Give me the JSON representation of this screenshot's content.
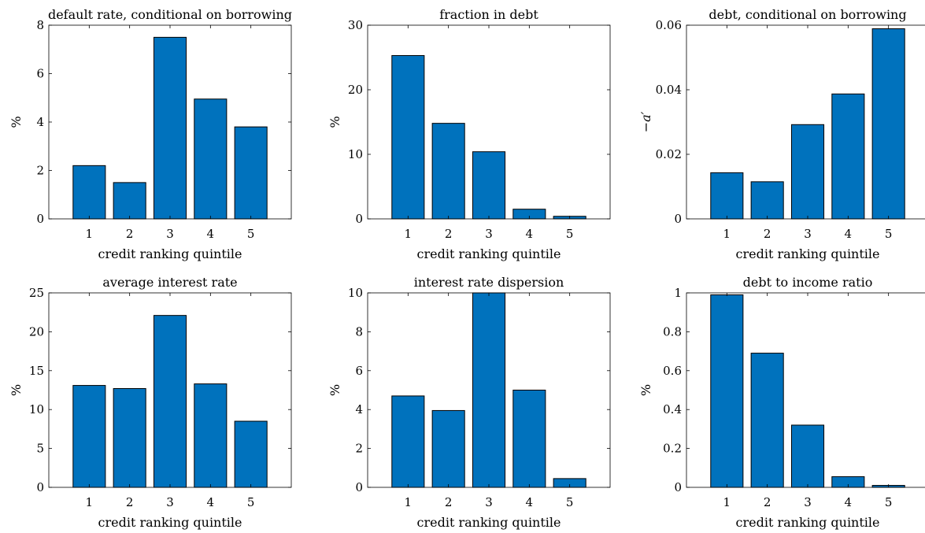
{
  "figure": {
    "bar_color": "#0072BD",
    "bar_edge_color": "#000000",
    "axis_color": "#000000"
  },
  "chart_data": [
    {
      "type": "bar",
      "title": "default rate, conditional on borrowing",
      "xlabel": "credit ranking quintile",
      "ylabel": "%",
      "categories": [
        "1",
        "2",
        "3",
        "4",
        "5"
      ],
      "values": [
        2.2,
        1.5,
        7.5,
        4.95,
        3.8
      ],
      "ylim": [
        0,
        8
      ],
      "yticks": [
        0,
        2,
        4,
        6,
        8
      ],
      "ytick_labels": [
        "0",
        "2",
        "4",
        "6",
        "8"
      ],
      "grid": false
    },
    {
      "type": "bar",
      "title": "fraction in debt",
      "xlabel": "credit ranking quintile",
      "ylabel": "%",
      "categories": [
        "1",
        "2",
        "3",
        "4",
        "5"
      ],
      "values": [
        25.3,
        14.8,
        10.4,
        1.5,
        0.4
      ],
      "ylim": [
        0,
        30
      ],
      "yticks": [
        0,
        10,
        20,
        30
      ],
      "ytick_labels": [
        "0",
        "10",
        "20",
        "30"
      ],
      "grid": false
    },
    {
      "type": "bar",
      "title": "debt, conditional on borrowing",
      "xlabel": "credit ranking quintile",
      "ylabel": "−a′",
      "categories": [
        "1",
        "2",
        "3",
        "4",
        "5"
      ],
      "values": [
        0.0143,
        0.0115,
        0.0292,
        0.0387,
        0.0589
      ],
      "ylim": [
        0,
        0.06
      ],
      "yticks": [
        0,
        0.02,
        0.04,
        0.06
      ],
      "ytick_labels": [
        "0",
        "0.02",
        "0.04",
        "0.06"
      ],
      "grid": false
    },
    {
      "type": "bar",
      "title": "average interest rate",
      "xlabel": "credit ranking quintile",
      "ylabel": "%",
      "categories": [
        "1",
        "2",
        "3",
        "4",
        "5"
      ],
      "values": [
        13.1,
        12.7,
        22.1,
        13.3,
        8.5
      ],
      "ylim": [
        0,
        25
      ],
      "yticks": [
        0,
        5,
        10,
        15,
        20,
        25
      ],
      "ytick_labels": [
        "0",
        "5",
        "10",
        "15",
        "20",
        "25"
      ],
      "grid": false
    },
    {
      "type": "bar",
      "title": "interest rate dispersion",
      "xlabel": "credit ranking quintile",
      "ylabel": "%",
      "categories": [
        "1",
        "2",
        "3",
        "4",
        "5"
      ],
      "values": [
        4.7,
        3.95,
        10.0,
        5.0,
        0.45
      ],
      "ylim": [
        0,
        10
      ],
      "yticks": [
        0,
        2,
        4,
        6,
        8,
        10
      ],
      "ytick_labels": [
        "0",
        "2",
        "4",
        "6",
        "8",
        "10"
      ],
      "grid": false
    },
    {
      "type": "bar",
      "title": "debt to income ratio",
      "xlabel": "credit ranking quintile",
      "ylabel": "%",
      "categories": [
        "1",
        "2",
        "3",
        "4",
        "5"
      ],
      "values": [
        0.99,
        0.69,
        0.32,
        0.055,
        0.01
      ],
      "ylim": [
        0,
        1
      ],
      "yticks": [
        0,
        0.2,
        0.4,
        0.6,
        0.8,
        1
      ],
      "ytick_labels": [
        "0",
        "0.2",
        "0.4",
        "0.6",
        "0.8",
        "1"
      ],
      "grid": false
    }
  ]
}
